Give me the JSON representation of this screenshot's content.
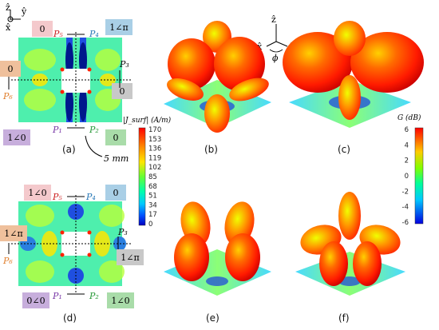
{
  "axes_top_left": {
    "z": "ẑ",
    "y": "ŷ",
    "x": "x̂"
  },
  "axes_3d": {
    "z": "ẑ",
    "x": "x̂",
    "y": "ŷ",
    "phi": "ϕ"
  },
  "panel_a": {
    "label": "(a)",
    "ports": {
      "p1": "P₁",
      "p2": "P₂",
      "p3": "P₃",
      "p4": "P₄",
      "p5": "P₅",
      "p6": "P₆"
    },
    "badges": {
      "top_left": "0",
      "top_right": "1∠π",
      "left": "0",
      "right": "0",
      "bottom_left": "1∠0",
      "bottom_right": "0"
    },
    "dimension": "5 mm"
  },
  "panel_d": {
    "label": "(d)",
    "ports": {
      "p1": "P₁",
      "p2": "P₂",
      "p3": "P₃",
      "p4": "P₄",
      "p5": "P₅",
      "p6": "P₆"
    },
    "badges": {
      "top_left": "1∠0",
      "top_right": "0",
      "left": "1∠π",
      "right": "1∠π",
      "bottom_left": "0∠0",
      "bottom_right": "1∠0"
    }
  },
  "colorbar_j": {
    "title": "|J_surf| (A/m)",
    "ticks": [
      "170",
      "153",
      "136",
      "119",
      "102",
      "85",
      "68",
      "51",
      "34",
      "17",
      "0"
    ],
    "colors": [
      "#ff0000",
      "#ff4d00",
      "#ff9900",
      "#ffe600",
      "#b3ff00",
      "#33ff4d",
      "#00ff99",
      "#00e6e6",
      "#0099ff",
      "#0040ff",
      "#0000cc"
    ]
  },
  "colorbar_g": {
    "title": "G (dB)",
    "ticks": [
      "6",
      "4",
      "2",
      "0",
      "-2",
      "-4",
      "-6"
    ],
    "colors": [
      "#ff0000",
      "#ff8000",
      "#ffff00",
      "#40ff40",
      "#00ffff",
      "#0080ff",
      "#0000ff"
    ]
  },
  "panels_3d": {
    "b": "(b)",
    "c": "(c)",
    "e": "(e)",
    "f": "(f)"
  }
}
